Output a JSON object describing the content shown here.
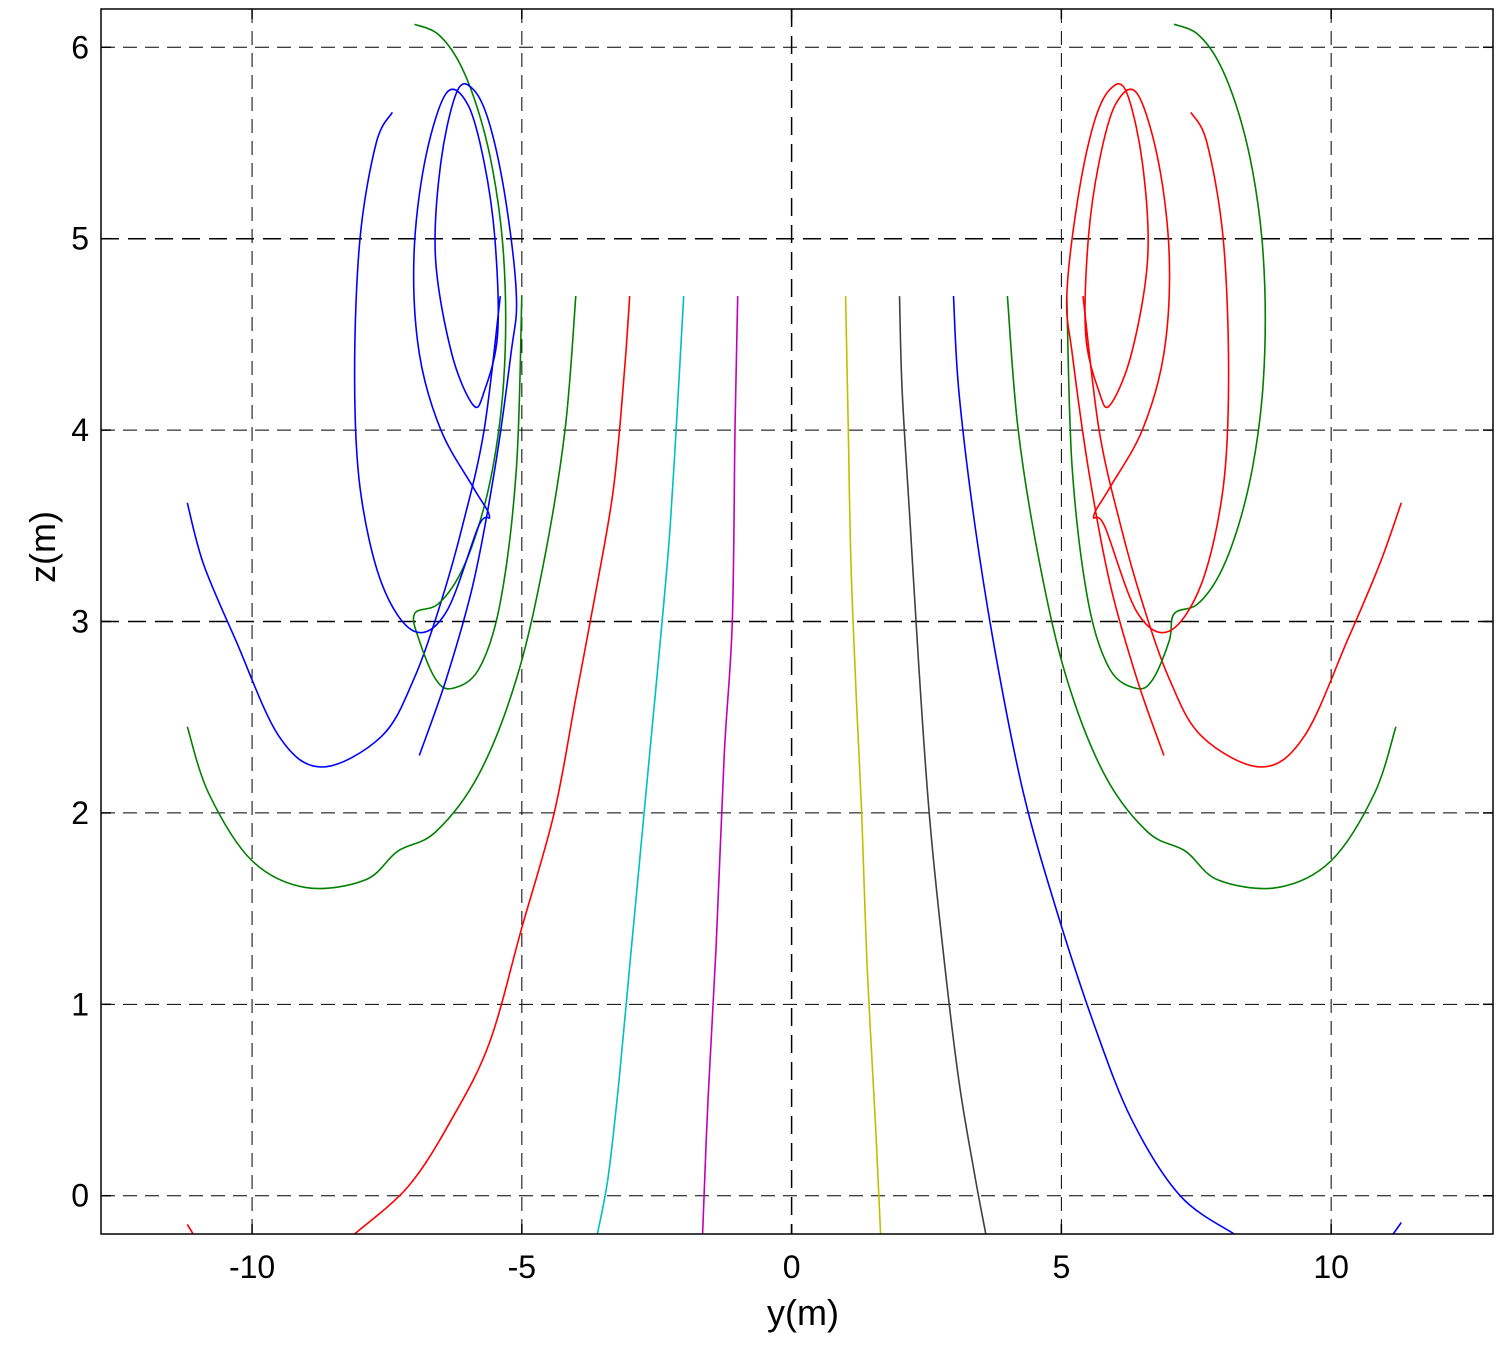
{
  "chart_data": {
    "type": "line",
    "title": "",
    "xlabel": "y(m)",
    "ylabel": "z(m)",
    "xlim": [
      -12.8,
      13.0
    ],
    "ylim": [
      -0.2,
      6.2
    ],
    "x_ticks": [
      -10,
      -5,
      0,
      5,
      10
    ],
    "x_tick_labels": [
      "-10",
      "-5",
      "0",
      "5",
      "10"
    ],
    "y_ticks": [
      0,
      1,
      2,
      3,
      4,
      5,
      6
    ],
    "y_tick_labels": [
      "0",
      "1",
      "2",
      "3",
      "4",
      "5",
      "6"
    ],
    "grid": true,
    "legend": "none",
    "series": [
      {
        "color": "#ff0000",
        "points": [
          [
            -3.0,
            4.7
          ],
          [
            -3.1,
            4.3
          ],
          [
            -3.3,
            3.7
          ],
          [
            -3.6,
            3.2
          ],
          [
            -4.0,
            2.6
          ],
          [
            -4.4,
            2.0
          ],
          [
            -5.0,
            1.4
          ],
          [
            -5.6,
            0.8
          ],
          [
            -6.3,
            0.4
          ],
          [
            -7.1,
            0.05
          ],
          [
            -8.1,
            -0.2
          ]
        ]
      },
      {
        "color": "#00bfbf",
        "points": [
          [
            -2.0,
            4.7
          ],
          [
            -2.1,
            4.2
          ],
          [
            -2.25,
            3.5
          ],
          [
            -2.4,
            3.0
          ],
          [
            -2.6,
            2.4
          ],
          [
            -2.8,
            1.8
          ],
          [
            -3.0,
            1.2
          ],
          [
            -3.2,
            0.6
          ],
          [
            -3.4,
            0.1
          ],
          [
            -3.6,
            -0.2
          ]
        ]
      },
      {
        "color": "#bf00bf",
        "points": [
          [
            -1.0,
            4.7
          ],
          [
            -1.05,
            4.0
          ],
          [
            -1.1,
            3.0
          ],
          [
            -1.25,
            2.3
          ],
          [
            -1.4,
            1.3
          ],
          [
            -1.55,
            0.5
          ],
          [
            -1.65,
            -0.2
          ]
        ]
      },
      {
        "color": "#bfbf00",
        "points": [
          [
            1.0,
            4.7
          ],
          [
            1.05,
            4.0
          ],
          [
            1.1,
            3.3
          ],
          [
            1.2,
            2.6
          ],
          [
            1.3,
            2.0
          ],
          [
            1.4,
            1.2
          ],
          [
            1.55,
            0.4
          ],
          [
            1.65,
            -0.2
          ]
        ]
      },
      {
        "color": "#404040",
        "points": [
          [
            2.0,
            4.7
          ],
          [
            2.05,
            4.2
          ],
          [
            2.2,
            3.5
          ],
          [
            2.35,
            2.8
          ],
          [
            2.55,
            2.0
          ],
          [
            2.8,
            1.3
          ],
          [
            3.1,
            0.6
          ],
          [
            3.4,
            0.1
          ],
          [
            3.6,
            -0.2
          ]
        ]
      },
      {
        "color": "#0000ff",
        "points": [
          [
            3.0,
            4.7
          ],
          [
            3.1,
            4.2
          ],
          [
            3.4,
            3.5
          ],
          [
            3.8,
            2.8
          ],
          [
            4.3,
            2.1
          ],
          [
            4.9,
            1.5
          ],
          [
            5.6,
            0.9
          ],
          [
            6.3,
            0.4
          ],
          [
            7.2,
            0.0
          ],
          [
            8.2,
            -0.2
          ]
        ]
      },
      {
        "color": "#008000",
        "points": [
          [
            -4.0,
            4.7
          ],
          [
            -4.2,
            4.0
          ],
          [
            -4.6,
            3.3
          ],
          [
            -5.1,
            2.7
          ],
          [
            -5.8,
            2.2
          ],
          [
            -6.6,
            1.9
          ],
          [
            -7.3,
            1.8
          ],
          [
            -7.9,
            1.65
          ],
          [
            -9.0,
            1.61
          ],
          [
            -10.0,
            1.75
          ],
          [
            -10.8,
            2.1
          ],
          [
            -11.2,
            2.45
          ]
        ]
      },
      {
        "color": "#008000",
        "points": [
          [
            4.0,
            4.7
          ],
          [
            4.2,
            4.0
          ],
          [
            4.6,
            3.3
          ],
          [
            5.1,
            2.7
          ],
          [
            5.8,
            2.2
          ],
          [
            6.6,
            1.9
          ],
          [
            7.3,
            1.8
          ],
          [
            7.9,
            1.65
          ],
          [
            9.0,
            1.61
          ],
          [
            10.0,
            1.75
          ],
          [
            10.8,
            2.1
          ],
          [
            11.2,
            2.45
          ]
        ]
      },
      {
        "color": "#0000ff",
        "points": [
          [
            -5.4,
            4.7
          ],
          [
            -5.7,
            4.0
          ],
          [
            -6.1,
            3.5
          ],
          [
            -6.5,
            3.1
          ],
          [
            -7.0,
            2.7
          ],
          [
            -7.6,
            2.4
          ],
          [
            -8.7,
            2.24
          ],
          [
            -9.5,
            2.4
          ],
          [
            -10.3,
            2.9
          ],
          [
            -10.9,
            3.3
          ],
          [
            -11.2,
            3.62
          ]
        ]
      },
      {
        "color": "#ff0000",
        "points": [
          [
            5.4,
            4.7
          ],
          [
            5.7,
            4.0
          ],
          [
            6.1,
            3.5
          ],
          [
            6.5,
            3.1
          ],
          [
            7.0,
            2.7
          ],
          [
            7.6,
            2.4
          ],
          [
            8.7,
            2.24
          ],
          [
            9.5,
            2.4
          ],
          [
            10.3,
            2.9
          ],
          [
            10.9,
            3.3
          ],
          [
            11.3,
            3.62
          ]
        ]
      },
      {
        "color": "#ff0000",
        "points": [
          [
            -11.2,
            -0.15
          ],
          [
            -11.05,
            -0.22
          ]
        ]
      },
      {
        "color": "#0000ff",
        "points": [
          [
            11.1,
            -0.22
          ],
          [
            11.3,
            -0.14
          ]
        ]
      },
      {
        "color": "#008000",
        "points": [
          [
            -6.99,
            6.12
          ],
          [
            -6.56,
            6.07
          ],
          [
            -6.16,
            5.92
          ],
          [
            -5.81,
            5.67
          ],
          [
            -5.54,
            5.36
          ],
          [
            -5.36,
            4.99
          ],
          [
            -5.3,
            4.58
          ],
          [
            -5.36,
            4.17
          ],
          [
            -5.54,
            3.8
          ],
          [
            -5.81,
            3.49
          ],
          [
            -6.16,
            3.24
          ],
          [
            -6.56,
            3.09
          ],
          [
            -6.99,
            3.04
          ],
          [
            -6.9,
            2.9
          ],
          [
            -6.6,
            2.7
          ],
          [
            -6.3,
            2.65
          ],
          [
            -5.8,
            2.75
          ],
          [
            -5.4,
            3.1
          ],
          [
            -5.1,
            3.8
          ],
          [
            -5.0,
            4.7
          ]
        ]
      },
      {
        "color": "#008000",
        "points": [
          [
            7.09,
            6.12
          ],
          [
            7.52,
            6.07
          ],
          [
            7.92,
            5.92
          ],
          [
            8.27,
            5.67
          ],
          [
            8.54,
            5.36
          ],
          [
            8.72,
            4.99
          ],
          [
            8.78,
            4.58
          ],
          [
            8.72,
            4.17
          ],
          [
            8.54,
            3.8
          ],
          [
            8.27,
            3.49
          ],
          [
            7.92,
            3.24
          ],
          [
            7.52,
            3.09
          ],
          [
            7.09,
            3.04
          ],
          [
            7.0,
            2.9
          ],
          [
            6.7,
            2.7
          ],
          [
            6.4,
            2.65
          ],
          [
            5.9,
            2.75
          ],
          [
            5.5,
            3.1
          ],
          [
            5.2,
            3.8
          ],
          [
            5.1,
            4.7
          ]
        ]
      },
      {
        "color": "#0000ff",
        "points": [
          [
            -7.4,
            5.66
          ],
          [
            -7.7,
            5.5
          ],
          [
            -8.0,
            5.0
          ],
          [
            -8.1,
            4.3
          ],
          [
            -8.0,
            3.7
          ],
          [
            -7.6,
            3.2
          ],
          [
            -7.0,
            2.95
          ],
          [
            -6.4,
            3.05
          ],
          [
            -5.8,
            3.5
          ],
          [
            -5.6,
            3.55
          ],
          [
            -5.9,
            3.7
          ],
          [
            -6.5,
            4.0
          ],
          [
            -6.9,
            4.4
          ],
          [
            -7.0,
            4.9
          ],
          [
            -6.8,
            5.4
          ],
          [
            -6.4,
            5.76
          ],
          [
            -6.0,
            5.7
          ],
          [
            -5.7,
            5.4
          ],
          [
            -5.5,
            5.0
          ],
          [
            -5.45,
            4.5
          ],
          [
            -5.7,
            4.2
          ],
          [
            -5.9,
            4.13
          ],
          [
            -6.3,
            4.4
          ],
          [
            -6.6,
            4.9
          ],
          [
            -6.5,
            5.4
          ],
          [
            -6.2,
            5.77
          ],
          [
            -5.9,
            5.78
          ],
          [
            -5.6,
            5.6
          ],
          [
            -5.3,
            5.2
          ],
          [
            -5.1,
            4.7
          ],
          [
            -5.2,
            4.4
          ],
          [
            -5.5,
            3.8
          ],
          [
            -5.9,
            3.2
          ],
          [
            -6.4,
            2.7
          ],
          [
            -6.9,
            2.3
          ]
        ]
      },
      {
        "color": "#ff0000",
        "points": [
          [
            7.4,
            5.66
          ],
          [
            7.7,
            5.5
          ],
          [
            8.0,
            5.0
          ],
          [
            8.1,
            4.3
          ],
          [
            8.0,
            3.7
          ],
          [
            7.6,
            3.2
          ],
          [
            7.0,
            2.95
          ],
          [
            6.4,
            3.05
          ],
          [
            5.8,
            3.5
          ],
          [
            5.6,
            3.55
          ],
          [
            5.9,
            3.7
          ],
          [
            6.5,
            4.0
          ],
          [
            6.9,
            4.4
          ],
          [
            7.0,
            4.9
          ],
          [
            6.8,
            5.4
          ],
          [
            6.4,
            5.76
          ],
          [
            6.0,
            5.7
          ],
          [
            5.7,
            5.4
          ],
          [
            5.5,
            5.0
          ],
          [
            5.45,
            4.5
          ],
          [
            5.7,
            4.2
          ],
          [
            5.9,
            4.13
          ],
          [
            6.3,
            4.4
          ],
          [
            6.6,
            4.9
          ],
          [
            6.5,
            5.4
          ],
          [
            6.2,
            5.77
          ],
          [
            5.9,
            5.78
          ],
          [
            5.6,
            5.6
          ],
          [
            5.3,
            5.2
          ],
          [
            5.1,
            4.7
          ],
          [
            5.2,
            4.4
          ],
          [
            5.5,
            3.8
          ],
          [
            5.9,
            3.2
          ],
          [
            6.4,
            2.7
          ],
          [
            6.9,
            2.3
          ]
        ]
      }
    ]
  }
}
